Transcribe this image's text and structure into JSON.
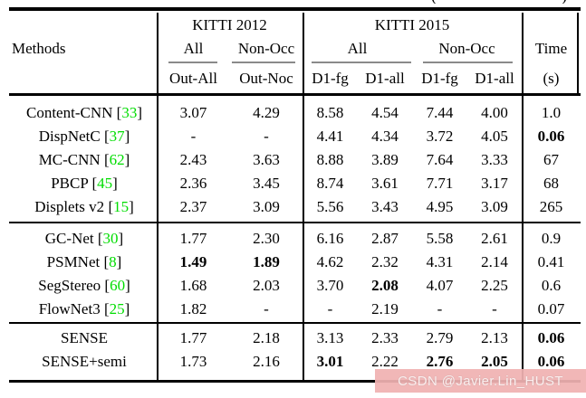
{
  "caption_fragment": {
    "left": "(",
    "right": ")"
  },
  "table": {
    "methods_header": "Methods",
    "col_groups": [
      {
        "label": "KITTI 2012",
        "subs": [
          "All",
          "Non-Occ"
        ]
      },
      {
        "label": "KITTI 2015",
        "subs": [
          "All",
          "Non-Occ"
        ]
      }
    ],
    "time_header": "Time",
    "columns": [
      "Out-All",
      "Out-Noc",
      "D1-fg",
      "D1-all",
      "D1-fg",
      "D1-all",
      "(s)"
    ],
    "groups": [
      {
        "rows": [
          {
            "method": "Content-CNN",
            "cite": "33",
            "values": [
              "3.07",
              "4.29",
              "8.58",
              "4.54",
              "7.44",
              "4.00",
              "1.0"
            ],
            "bold": []
          },
          {
            "method": "DispNetC",
            "cite": "37",
            "values": [
              "-",
              "-",
              "4.41",
              "4.34",
              "3.72",
              "4.05",
              "0.06"
            ],
            "bold": [
              6
            ]
          },
          {
            "method": "MC-CNN",
            "cite": "62",
            "values": [
              "2.43",
              "3.63",
              "8.88",
              "3.89",
              "7.64",
              "3.33",
              "67"
            ],
            "bold": []
          },
          {
            "method": "PBCP",
            "cite": "45",
            "values": [
              "2.36",
              "3.45",
              "8.74",
              "3.61",
              "7.71",
              "3.17",
              "68"
            ],
            "bold": []
          },
          {
            "method": "Displets v2",
            "cite": "15",
            "values": [
              "2.37",
              "3.09",
              "5.56",
              "3.43",
              "4.95",
              "3.09",
              "265"
            ],
            "bold": []
          }
        ]
      },
      {
        "rows": [
          {
            "method": "GC-Net",
            "cite": "30",
            "values": [
              "1.77",
              "2.30",
              "6.16",
              "2.87",
              "5.58",
              "2.61",
              "0.9"
            ],
            "bold": []
          },
          {
            "method": "PSMNet",
            "cite": "8",
            "values": [
              "1.49",
              "1.89",
              "4.62",
              "2.32",
              "4.31",
              "2.14",
              "0.41"
            ],
            "bold": [
              0,
              1
            ]
          },
          {
            "method": "SegStereo",
            "cite": "60",
            "values": [
              "1.68",
              "2.03",
              "3.70",
              "2.08",
              "4.07",
              "2.25",
              "0.6"
            ],
            "bold": [
              3
            ]
          },
          {
            "method": "FlowNet3",
            "cite": "25",
            "values": [
              "1.82",
              "-",
              "-",
              "2.19",
              "-",
              "-",
              "0.07"
            ],
            "bold": []
          }
        ]
      },
      {
        "rows": [
          {
            "method": "SENSE",
            "cite": null,
            "values": [
              "1.77",
              "2.18",
              "3.13",
              "2.33",
              "2.79",
              "2.13",
              "0.06"
            ],
            "bold": [
              6
            ]
          },
          {
            "method": "SENSE+semi",
            "cite": null,
            "values": [
              "1.73",
              "2.16",
              "3.01",
              "2.22",
              "2.76",
              "2.05",
              "0.06"
            ],
            "bold": [
              2,
              4,
              5,
              6
            ]
          }
        ]
      }
    ]
  },
  "watermark": {
    "text": "CSDN @Javier.Lin_HUST"
  },
  "colors": {
    "citation_green": "#00dd00",
    "cmidrule_gray": "#8a8a8a",
    "watermark_bg": "#f0b2b2",
    "watermark_text": "#fceeee",
    "rule_black": "#000000"
  }
}
